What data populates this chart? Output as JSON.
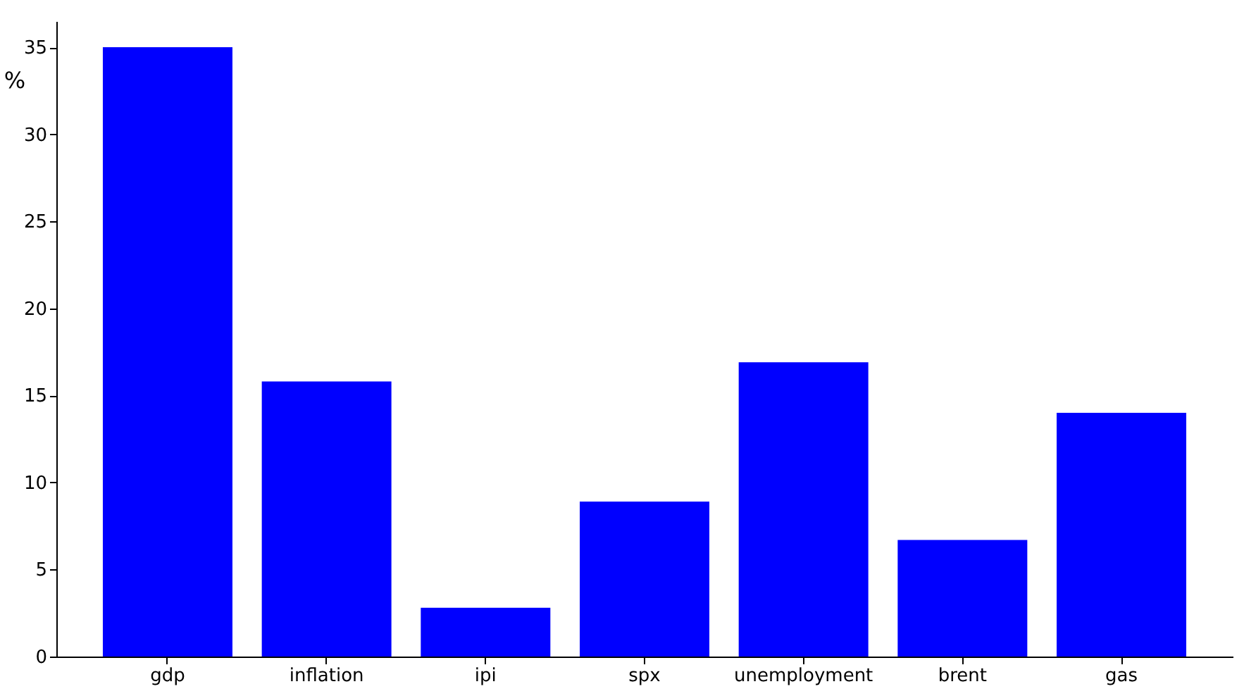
{
  "chart_data": {
    "type": "bar",
    "ylabel": "%",
    "categories": [
      "gdp",
      "inflation",
      "ipi",
      "spx",
      "unemployment",
      "brent",
      "gas"
    ],
    "values": [
      35.0,
      15.8,
      2.8,
      8.9,
      16.9,
      6.7,
      14.0
    ],
    "color": "#0000ff",
    "ylim": [
      0,
      36.5
    ],
    "yticks": [
      0,
      5,
      10,
      15,
      20,
      25,
      30,
      35
    ],
    "grid": false
  }
}
